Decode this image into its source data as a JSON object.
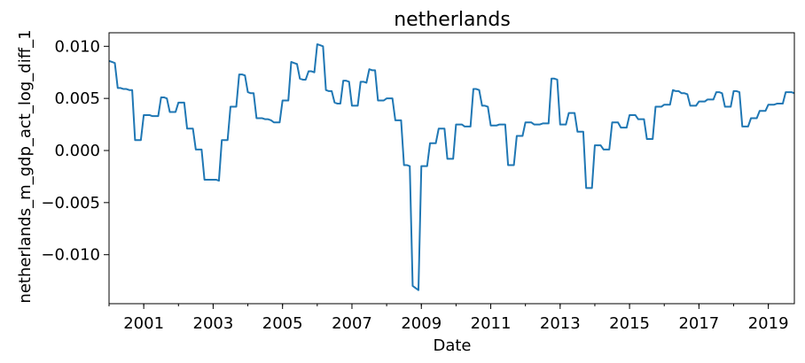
{
  "chart_data": {
    "type": "line",
    "title": "netherlands",
    "xlabel": "Date",
    "ylabel": "netherlands_m_gdp_act_log_diff_1",
    "x_ticks": [
      "2001",
      "2003",
      "2005",
      "2007",
      "2009",
      "2011",
      "2013",
      "2015",
      "2017",
      "2019"
    ],
    "y_ticks": [
      "−0.010",
      "−0.005",
      "0.000",
      "0.005",
      "0.010"
    ],
    "y_tick_values": [
      -0.01,
      -0.005,
      0.0,
      0.005,
      0.01
    ],
    "xlim": [
      "2000-01",
      "2019-10"
    ],
    "ylim": [
      -0.0147,
      0.0113
    ],
    "grid": false,
    "series_color": "#1f77b4",
    "series": [
      {
        "x": [
          "2000-01",
          "2000-02",
          "2000-03",
          "2000-04",
          "2000-05",
          "2000-06",
          "2000-07",
          "2000-08",
          "2000-09",
          "2000-10",
          "2000-11",
          "2000-12",
          "2001-01",
          "2001-02",
          "2001-03",
          "2001-04",
          "2001-05",
          "2001-06",
          "2001-07",
          "2001-08",
          "2001-09",
          "2001-10",
          "2001-11",
          "2001-12",
          "2002-01",
          "2002-02",
          "2002-03",
          "2002-04",
          "2002-05",
          "2002-06",
          "2002-07",
          "2002-08",
          "2002-09",
          "2002-10",
          "2002-11",
          "2002-12",
          "2003-01",
          "2003-02",
          "2003-03",
          "2003-04",
          "2003-05",
          "2003-06",
          "2003-07",
          "2003-08",
          "2003-09",
          "2003-10",
          "2003-11",
          "2003-12",
          "2004-01",
          "2004-02",
          "2004-03",
          "2004-04",
          "2004-05",
          "2004-06",
          "2004-07",
          "2004-08",
          "2004-09",
          "2004-10",
          "2004-11",
          "2004-12",
          "2005-01",
          "2005-02",
          "2005-03",
          "2005-04",
          "2005-05",
          "2005-06",
          "2005-07",
          "2005-08",
          "2005-09",
          "2005-10",
          "2005-11",
          "2005-12",
          "2006-01",
          "2006-02",
          "2006-03",
          "2006-04",
          "2006-05",
          "2006-06",
          "2006-07",
          "2006-08",
          "2006-09",
          "2006-10",
          "2006-11",
          "2006-12",
          "2007-01",
          "2007-02",
          "2007-03",
          "2007-04",
          "2007-05",
          "2007-06",
          "2007-07",
          "2007-08",
          "2007-09",
          "2007-10",
          "2007-11",
          "2007-12",
          "2008-01",
          "2008-02",
          "2008-03",
          "2008-04",
          "2008-05",
          "2008-06",
          "2008-07",
          "2008-08",
          "2008-09",
          "2008-10",
          "2008-11",
          "2008-12",
          "2009-01",
          "2009-02",
          "2009-03",
          "2009-04",
          "2009-05",
          "2009-06",
          "2009-07",
          "2009-08",
          "2009-09",
          "2009-10",
          "2009-11",
          "2009-12",
          "2010-01",
          "2010-02",
          "2010-03",
          "2010-04",
          "2010-05",
          "2010-06",
          "2010-07",
          "2010-08",
          "2010-09",
          "2010-10",
          "2010-11",
          "2010-12",
          "2011-01",
          "2011-02",
          "2011-03",
          "2011-04",
          "2011-05",
          "2011-06",
          "2011-07",
          "2011-08",
          "2011-09",
          "2011-10",
          "2011-11",
          "2011-12",
          "2012-01",
          "2012-02",
          "2012-03",
          "2012-04",
          "2012-05",
          "2012-06",
          "2012-07",
          "2012-08",
          "2012-09",
          "2012-10",
          "2012-11",
          "2012-12",
          "2013-01",
          "2013-02",
          "2013-03",
          "2013-04",
          "2013-05",
          "2013-06",
          "2013-07",
          "2013-08",
          "2013-09",
          "2013-10",
          "2013-11",
          "2013-12",
          "2014-01",
          "2014-02",
          "2014-03",
          "2014-04",
          "2014-05",
          "2014-06",
          "2014-07",
          "2014-08",
          "2014-09",
          "2014-10",
          "2014-11",
          "2014-12",
          "2015-01",
          "2015-02",
          "2015-03",
          "2015-04",
          "2015-05",
          "2015-06",
          "2015-07",
          "2015-08",
          "2015-09",
          "2015-10",
          "2015-11",
          "2015-12",
          "2016-01",
          "2016-02",
          "2016-03",
          "2016-04",
          "2016-05",
          "2016-06",
          "2016-07",
          "2016-08",
          "2016-09",
          "2016-10",
          "2016-11",
          "2016-12",
          "2017-01",
          "2017-02",
          "2017-03",
          "2017-04",
          "2017-05",
          "2017-06",
          "2017-07",
          "2017-08",
          "2017-09",
          "2017-10",
          "2017-11",
          "2017-12",
          "2018-01",
          "2018-02",
          "2018-03",
          "2018-04",
          "2018-05",
          "2018-06",
          "2018-07",
          "2018-08",
          "2018-09",
          "2018-10",
          "2018-11",
          "2018-12",
          "2019-01",
          "2019-02",
          "2019-03",
          "2019-04",
          "2019-05",
          "2019-06",
          "2019-07",
          "2019-08",
          "2019-09",
          "2019-10"
        ],
        "values": [
          0.0086,
          0.0085,
          0.0084,
          0.006,
          0.006,
          0.0059,
          0.0059,
          0.0058,
          0.0058,
          0.001,
          0.001,
          0.001,
          0.0034,
          0.0034,
          0.0034,
          0.0033,
          0.0033,
          0.0033,
          0.0051,
          0.0051,
          0.005,
          0.0037,
          0.0037,
          0.0037,
          0.0046,
          0.0046,
          0.0046,
          0.0021,
          0.0021,
          0.0021,
          0.0001,
          0.0001,
          0.0001,
          -0.0028,
          -0.0028,
          -0.0028,
          -0.0028,
          -0.0028,
          -0.0029,
          0.001,
          0.001,
          0.001,
          0.0042,
          0.0042,
          0.0042,
          0.0073,
          0.0073,
          0.0072,
          0.0056,
          0.0055,
          0.0055,
          0.0031,
          0.0031,
          0.0031,
          0.003,
          0.003,
          0.0029,
          0.0027,
          0.0027,
          0.0027,
          0.0048,
          0.0048,
          0.0048,
          0.0085,
          0.0084,
          0.0083,
          0.0069,
          0.0068,
          0.0068,
          0.0076,
          0.0076,
          0.0075,
          0.0102,
          0.0101,
          0.01,
          0.0058,
          0.0057,
          0.0057,
          0.0046,
          0.0045,
          0.0045,
          0.0067,
          0.0067,
          0.0066,
          0.0043,
          0.0043,
          0.0043,
          0.0066,
          0.0066,
          0.0065,
          0.0078,
          0.0077,
          0.0077,
          0.0048,
          0.0048,
          0.0048,
          0.005,
          0.005,
          0.005,
          0.0029,
          0.0029,
          0.0029,
          -0.0014,
          -0.0014,
          -0.0015,
          -0.013,
          -0.0132,
          -0.0134,
          -0.0015,
          -0.0015,
          -0.0015,
          0.0007,
          0.0007,
          0.0007,
          0.0021,
          0.0021,
          0.0021,
          -0.0008,
          -0.0008,
          -0.0008,
          0.0025,
          0.0025,
          0.0025,
          0.0023,
          0.0023,
          0.0023,
          0.0059,
          0.0059,
          0.0058,
          0.0043,
          0.0043,
          0.0042,
          0.0024,
          0.0024,
          0.0024,
          0.0025,
          0.0025,
          0.0025,
          -0.0014,
          -0.0014,
          -0.0014,
          0.0014,
          0.0014,
          0.0014,
          0.0027,
          0.0027,
          0.0027,
          0.0025,
          0.0025,
          0.0025,
          0.0026,
          0.0026,
          0.0026,
          0.0069,
          0.0069,
          0.0068,
          0.0025,
          0.0025,
          0.0025,
          0.0036,
          0.0036,
          0.0036,
          0.0018,
          0.0018,
          0.0018,
          -0.0036,
          -0.0036,
          -0.0036,
          0.0005,
          0.0005,
          0.0005,
          0.0001,
          0.0001,
          0.0001,
          0.0027,
          0.0027,
          0.0027,
          0.0022,
          0.0022,
          0.0022,
          0.0034,
          0.0034,
          0.0034,
          0.003,
          0.003,
          0.003,
          0.0011,
          0.0011,
          0.0011,
          0.0042,
          0.0042,
          0.0042,
          0.0044,
          0.0044,
          0.0044,
          0.0058,
          0.0057,
          0.0057,
          0.0055,
          0.0055,
          0.0054,
          0.0043,
          0.0043,
          0.0043,
          0.0047,
          0.0047,
          0.0047,
          0.0049,
          0.0049,
          0.0049,
          0.0056,
          0.0056,
          0.0055,
          0.0042,
          0.0042,
          0.0042,
          0.0057,
          0.0057,
          0.0056,
          0.0023,
          0.0023,
          0.0023,
          0.0031,
          0.0031,
          0.0031,
          0.0038,
          0.0038,
          0.0038,
          0.0044,
          0.0044,
          0.0044,
          0.0045,
          0.0045,
          0.0045,
          0.0056,
          0.0056,
          0.0056,
          0.0055
        ]
      }
    ]
  }
}
